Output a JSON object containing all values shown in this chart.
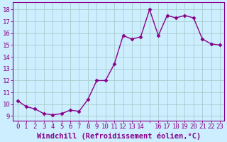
{
  "x": [
    0,
    1,
    2,
    3,
    4,
    5,
    6,
    7,
    8,
    9,
    10,
    11,
    12,
    13,
    14,
    15,
    16,
    17,
    18,
    19,
    20,
    21,
    22,
    23
  ],
  "y": [
    10.3,
    9.8,
    9.6,
    9.2,
    9.1,
    9.2,
    9.5,
    9.4,
    10.4,
    12.0,
    12.0,
    13.4,
    15.8,
    15.5,
    15.7,
    18.0,
    15.8,
    17.5,
    17.3,
    17.5,
    17.3,
    15.5,
    15.1,
    15.0
  ],
  "line_color": "#880088",
  "marker": "D",
  "marker_size": 2.5,
  "line_width": 1.0,
  "bg_color": "#cceeff",
  "grid_color": "#aacccc",
  "xlabel": "Windchill (Refroidissement éolien,°C)",
  "xlabel_color": "#880088",
  "xlabel_fontsize": 7.5,
  "ylabel_ticks": [
    9,
    10,
    11,
    12,
    13,
    14,
    15,
    16,
    17,
    18
  ],
  "xtick_labels": [
    "0",
    "1",
    "2",
    "3",
    "4",
    "5",
    "6",
    "7",
    "8",
    "9",
    "10",
    "11",
    "12",
    "13",
    "14",
    "",
    "16",
    "17",
    "18",
    "19",
    "20",
    "21",
    "22",
    "23"
  ],
  "ylim": [
    8.6,
    18.6
  ],
  "xlim": [
    -0.5,
    23.5
  ],
  "tick_color": "#880088",
  "tick_fontsize": 6.5,
  "axis_color": "#880088"
}
